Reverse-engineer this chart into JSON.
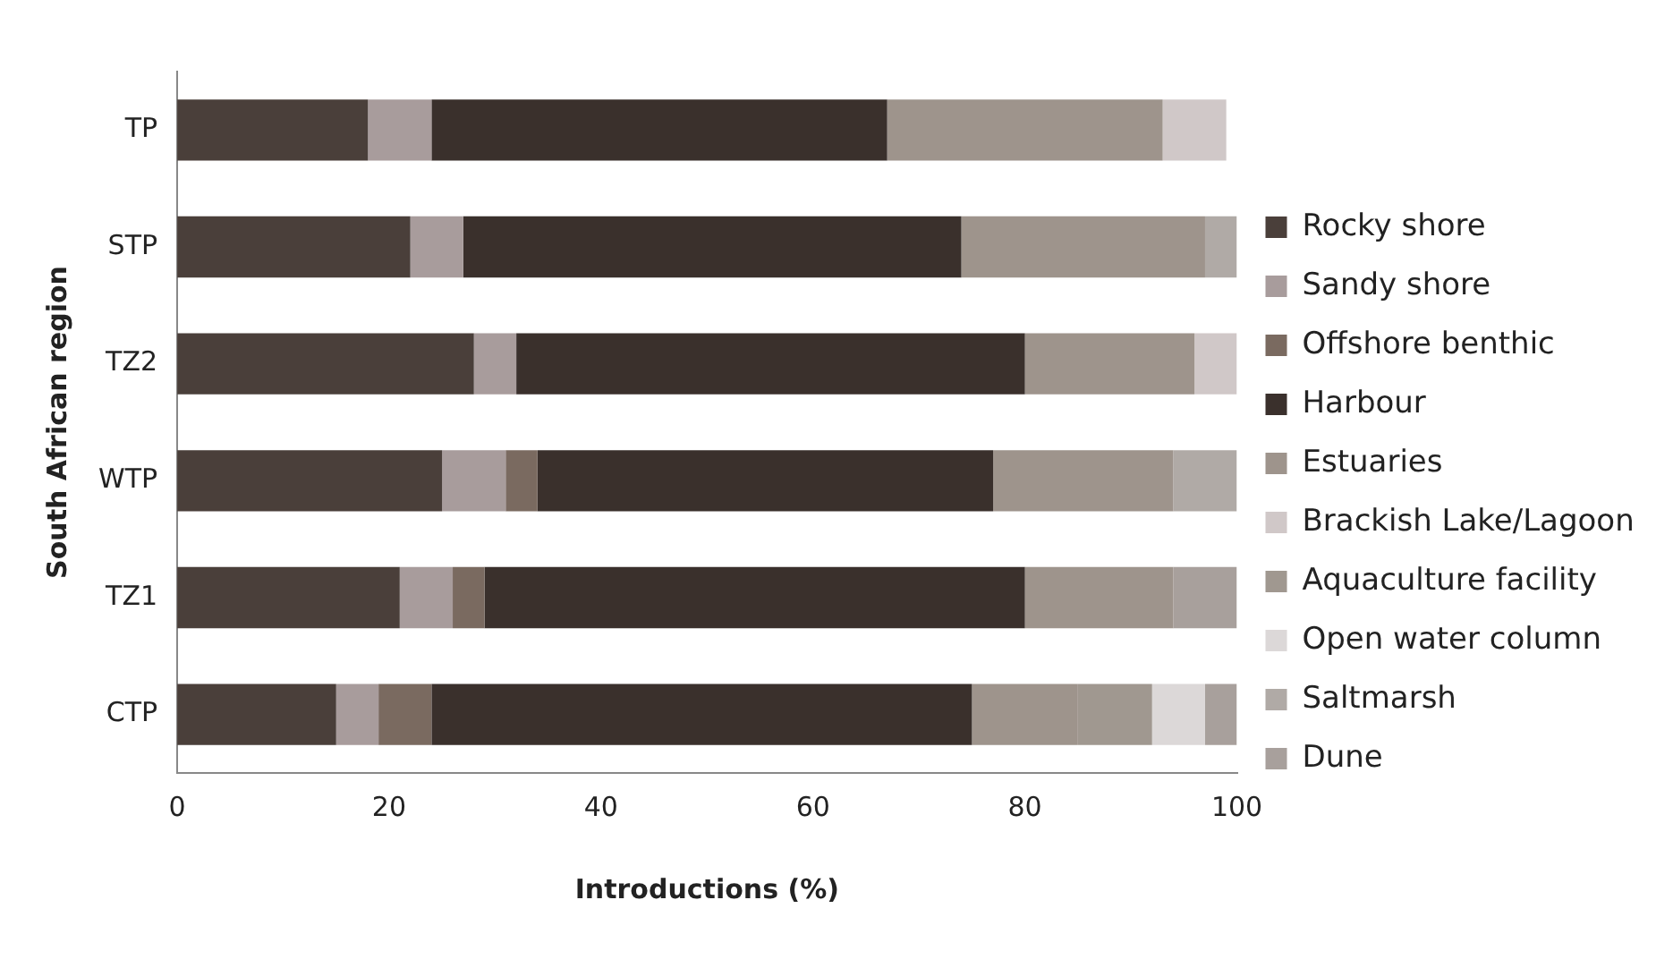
{
  "chart_data": {
    "type": "bar",
    "orientation": "horizontal",
    "stacked": true,
    "xlabel": "Introductions (%)",
    "ylabel": "South African region",
    "categories": [
      "TP",
      "STP",
      "TZ2",
      "WTP",
      "TZ1",
      "CTP"
    ],
    "xlim": [
      0,
      100
    ],
    "xticks": [
      0,
      20,
      40,
      60,
      80,
      100
    ],
    "grid": false,
    "legend": "right",
    "series": [
      {
        "name": "Rocky shore",
        "color": "#4a3f3a",
        "values": [
          18,
          22,
          28,
          25,
          21,
          15
        ]
      },
      {
        "name": "Sandy shore",
        "color": "#a89c9c",
        "values": [
          6,
          5,
          4,
          6,
          5,
          4
        ]
      },
      {
        "name": "Offshore benthic",
        "color": "#7a6a60",
        "values": [
          0,
          0,
          0,
          3,
          3,
          5
        ]
      },
      {
        "name": "Harbour",
        "color": "#3a302c",
        "values": [
          43,
          47,
          48,
          43,
          51,
          51
        ]
      },
      {
        "name": "Estuaries",
        "color": "#9e948c",
        "values": [
          26,
          23,
          16,
          17,
          14,
          10
        ]
      },
      {
        "name": "Brackish Lake/Lagoon",
        "color": "#d0c8c8",
        "values": [
          6,
          0,
          4,
          0,
          0,
          0
        ]
      },
      {
        "name": "Aquaculture facility",
        "color": "#a09890",
        "values": [
          0,
          0,
          0,
          0,
          0,
          7
        ]
      },
      {
        "name": "Open water column",
        "color": "#dcd8d8",
        "values": [
          0,
          0,
          0,
          0,
          0,
          5
        ]
      },
      {
        "name": "Saltmarsh",
        "color": "#b0aaa6",
        "values": [
          0,
          3,
          0,
          6,
          0,
          0
        ]
      },
      {
        "name": "Dune",
        "color": "#a8a09c",
        "values": [
          0,
          0,
          0,
          0,
          6,
          3
        ]
      }
    ]
  }
}
